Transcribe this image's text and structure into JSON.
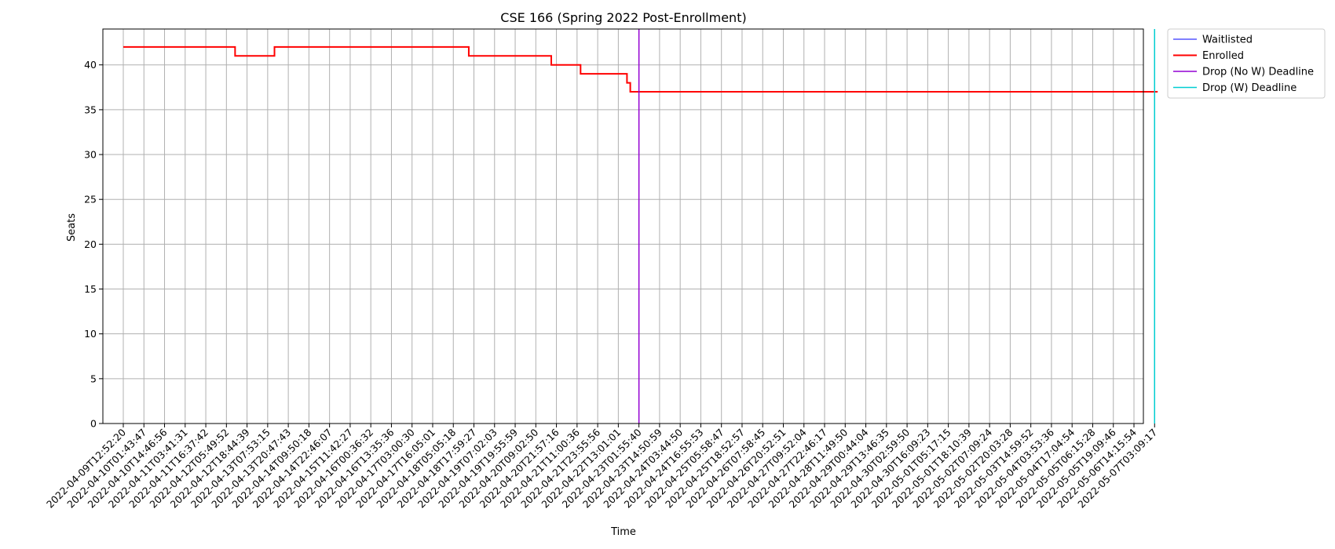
{
  "chart_data": {
    "type": "line",
    "title": "CSE 166 (Spring 2022 Post-Enrollment)",
    "xlabel": "Time",
    "ylabel": "Seats",
    "ylim": [
      0,
      44
    ],
    "yticks": [
      0,
      5,
      10,
      15,
      20,
      25,
      30,
      35,
      40
    ],
    "grid": true,
    "legend_position": "outside-top-right",
    "x_tick_labels": [
      "2022-04-09T12:52:20",
      "2022-04-10T01:43:47",
      "2022-04-10T14:46:56",
      "2022-04-11T03:41:31",
      "2022-04-11T16:37:42",
      "2022-04-12T05:49:52",
      "2022-04-12T18:44:39",
      "2022-04-13T07:53:15",
      "2022-04-13T20:47:43",
      "2022-04-14T09:50:18",
      "2022-04-14T22:46:07",
      "2022-04-15T11:42:27",
      "2022-04-16T00:36:32",
      "2022-04-16T13:35:36",
      "2022-04-17T03:00:30",
      "2022-04-17T16:05:01",
      "2022-04-18T05:05:18",
      "2022-04-18T17:59:27",
      "2022-04-19T07:02:03",
      "2022-04-19T19:55:59",
      "2022-04-20T09:02:50",
      "2022-04-20T21:57:16",
      "2022-04-21T11:00:36",
      "2022-04-21T23:55:56",
      "2022-04-22T13:01:01",
      "2022-04-23T01:55:40",
      "2022-04-23T14:50:59",
      "2022-04-24T03:44:50",
      "2022-04-24T16:55:53",
      "2022-04-25T05:58:47",
      "2022-04-25T18:52:57",
      "2022-04-26T07:58:45",
      "2022-04-26T20:52:51",
      "2022-04-27T09:52:04",
      "2022-04-27T22:46:17",
      "2022-04-28T11:49:50",
      "2022-04-29T00:44:04",
      "2022-04-29T13:46:35",
      "2022-04-30T02:59:50",
      "2022-04-30T16:09:23",
      "2022-05-01T05:17:15",
      "2022-05-01T18:10:39",
      "2022-05-02T07:09:24",
      "2022-05-02T20:03:28",
      "2022-05-03T14:59:52",
      "2022-05-04T03:53:36",
      "2022-05-04T17:04:54",
      "2022-05-05T06:15:28",
      "2022-05-05T19:09:46",
      "2022-05-06T14:15:54",
      "2022-05-07T03:09:17"
    ],
    "x_range_ticks": [
      -0.0833,
      50.15
    ],
    "series": [
      {
        "name": "Waitlisted",
        "color": "#0000ff",
        "line_width": 1,
        "x": [
          0,
          50.15
        ],
        "values": [
          0,
          0
        ]
      },
      {
        "name": "Enrolled",
        "color": "#ff0000",
        "line_width": 2,
        "step": true,
        "x": [
          0,
          5.42,
          7.33,
          16.75,
          20.75,
          22.17,
          24.42,
          24.58,
          50.15
        ],
        "values": [
          42,
          41,
          42,
          41,
          40,
          39,
          38,
          37,
          37
        ]
      }
    ],
    "vlines": [
      {
        "name": "Drop (No W) Deadline",
        "color": "#9400d3",
        "x": 25.0
      },
      {
        "name": "Drop (W) Deadline",
        "color": "#00ced1",
        "x": 50.0
      }
    ],
    "legend": [
      "Waitlisted",
      "Enrolled",
      "Drop (No W) Deadline",
      "Drop (W) Deadline"
    ]
  }
}
